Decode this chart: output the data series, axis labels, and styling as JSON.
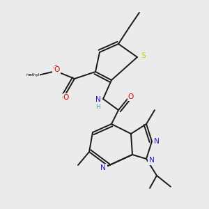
{
  "background_color": "#ebebeb",
  "colors": {
    "C": "#000000",
    "N": "#2222cc",
    "O": "#dd0000",
    "S": "#cccc00",
    "H": "#5599aa",
    "bond": "#1a1a1a"
  },
  "lw": 1.4,
  "fontsize": 7.2
}
